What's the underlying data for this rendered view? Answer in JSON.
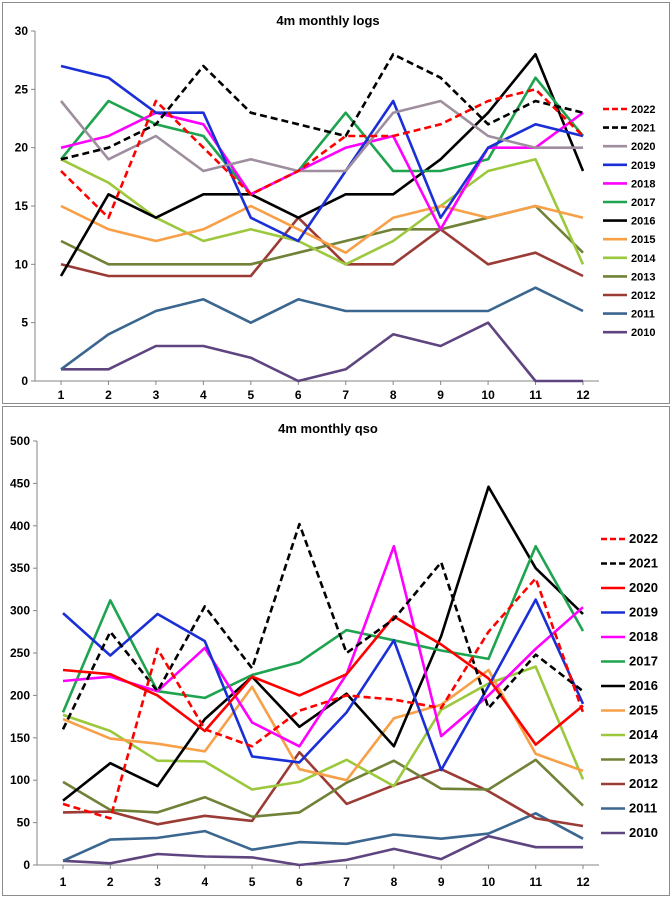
{
  "chart_data": [
    {
      "type": "line",
      "title": "4m monthly logs",
      "categories": [
        "1",
        "2",
        "3",
        "4",
        "5",
        "6",
        "7",
        "8",
        "9",
        "10",
        "11",
        "12"
      ],
      "ylim": [
        0,
        30
      ],
      "yticks": [
        "0",
        "5",
        "10",
        "15",
        "20",
        "25",
        "30"
      ],
      "grid": "none",
      "legend_position": "right",
      "series": [
        {
          "name": "2022",
          "color": "#ff0000",
          "dashed": true,
          "values": [
            18,
            14,
            24,
            20,
            16,
            18,
            21,
            21,
            22,
            24,
            25,
            21
          ]
        },
        {
          "name": "2021",
          "color": "#000000",
          "dashed": true,
          "values": [
            19,
            20,
            22,
            27,
            23,
            22,
            21,
            28,
            26,
            22,
            24,
            23
          ]
        },
        {
          "name": "2020",
          "color": "#9e8e9e",
          "dashed": false,
          "values": [
            24,
            19,
            21,
            18,
            19,
            18,
            18,
            23,
            24,
            21,
            20,
            20
          ]
        },
        {
          "name": "2019",
          "color": "#1a2fd6",
          "dashed": false,
          "values": [
            27,
            26,
            23,
            23,
            14,
            12,
            18,
            24,
            14,
            20,
            22,
            21
          ]
        },
        {
          "name": "2018",
          "color": "#ff00ff",
          "dashed": false,
          "values": [
            20,
            21,
            23,
            22,
            16,
            18,
            20,
            21,
            13,
            20,
            20,
            23
          ]
        },
        {
          "name": "2017",
          "color": "#1ea34f",
          "dashed": false,
          "values": [
            19,
            24,
            22,
            21,
            16,
            18,
            23,
            18,
            18,
            19,
            26,
            21
          ]
        },
        {
          "name": "2016",
          "color": "#000000",
          "dashed": false,
          "values": [
            9,
            16,
            14,
            16,
            16,
            14,
            16,
            16,
            19,
            23,
            28,
            18
          ]
        },
        {
          "name": "2015",
          "color": "#f7a048",
          "dashed": false,
          "values": [
            15,
            13,
            12,
            13,
            15,
            13,
            11,
            14,
            15,
            14,
            15,
            14
          ]
        },
        {
          "name": "2014",
          "color": "#9bc83c",
          "dashed": false,
          "values": [
            19,
            17,
            14,
            12,
            13,
            12,
            10,
            12,
            15,
            18,
            19,
            10
          ]
        },
        {
          "name": "2013",
          "color": "#708237",
          "dashed": false,
          "values": [
            12,
            10,
            10,
            10,
            10,
            11,
            12,
            13,
            13,
            14,
            15,
            11
          ]
        },
        {
          "name": "2012",
          "color": "#9b3b35",
          "dashed": false,
          "values": [
            10,
            9,
            9,
            9,
            9,
            14,
            10,
            10,
            13,
            10,
            11,
            9
          ]
        },
        {
          "name": "2011",
          "color": "#3b6690",
          "dashed": false,
          "values": [
            1,
            4,
            6,
            7,
            5,
            7,
            6,
            6,
            6,
            6,
            8,
            6
          ]
        },
        {
          "name": "2010",
          "color": "#5f4580",
          "dashed": false,
          "values": [
            1,
            1,
            3,
            3,
            2,
            0,
            1,
            4,
            3,
            5,
            0,
            0
          ]
        }
      ]
    },
    {
      "type": "line",
      "title": "4m monthly qso",
      "categories": [
        "1",
        "2",
        "3",
        "4",
        "5",
        "6",
        "7",
        "8",
        "9",
        "10",
        "11",
        "12"
      ],
      "ylim": [
        0,
        500
      ],
      "yticks": [
        "0",
        "50",
        "100",
        "150",
        "200",
        "250",
        "300",
        "350",
        "400",
        "450",
        "500"
      ],
      "grid": "none",
      "legend_position": "right",
      "series": [
        {
          "name": "2022",
          "color": "#ff0000",
          "dashed": true,
          "values": [
            72,
            55,
            255,
            160,
            140,
            182,
            200,
            195,
            185,
            275,
            338,
            180
          ]
        },
        {
          "name": "2021",
          "color": "#000000",
          "dashed": true,
          "values": [
            160,
            275,
            205,
            305,
            232,
            402,
            250,
            290,
            357,
            185,
            248,
            205
          ]
        },
        {
          "name": "2020",
          "color": "#ff0000",
          "dashed": false,
          "values": [
            230,
            225,
            200,
            158,
            222,
            200,
            225,
            293,
            260,
            220,
            142,
            188
          ]
        },
        {
          "name": "2019",
          "color": "#1a2fd6",
          "dashed": false,
          "values": [
            297,
            247,
            296,
            264,
            128,
            121,
            180,
            265,
            112,
            211,
            313,
            190
          ]
        },
        {
          "name": "2018",
          "color": "#ff00ff",
          "dashed": false,
          "values": [
            217,
            222,
            205,
            256,
            168,
            140,
            225,
            376,
            152,
            200,
            255,
            304
          ]
        },
        {
          "name": "2017",
          "color": "#1ea34f",
          "dashed": false,
          "values": [
            180,
            312,
            205,
            197,
            224,
            239,
            277,
            265,
            253,
            243,
            376,
            276
          ]
        },
        {
          "name": "2016",
          "color": "#000000",
          "dashed": false,
          "values": [
            76,
            120,
            93,
            172,
            222,
            163,
            202,
            140,
            270,
            446,
            350,
            296
          ]
        },
        {
          "name": "2015",
          "color": "#f7a048",
          "dashed": false,
          "values": [
            172,
            149,
            143,
            134,
            210,
            113,
            100,
            173,
            189,
            230,
            131,
            111
          ]
        },
        {
          "name": "2014",
          "color": "#9bc83c",
          "dashed": false,
          "values": [
            177,
            158,
            123,
            122,
            89,
            98,
            124,
            93,
            183,
            214,
            234,
            101
          ]
        },
        {
          "name": "2013",
          "color": "#708237",
          "dashed": false,
          "values": [
            98,
            65,
            62,
            80,
            57,
            62,
            97,
            123,
            90,
            89,
            124,
            70
          ]
        },
        {
          "name": "2012",
          "color": "#9b3b35",
          "dashed": false,
          "values": [
            62,
            63,
            48,
            58,
            52,
            133,
            72,
            94,
            113,
            87,
            55,
            46
          ]
        },
        {
          "name": "2011",
          "color": "#3b6690",
          "dashed": false,
          "values": [
            5,
            30,
            32,
            40,
            18,
            27,
            25,
            36,
            31,
            37,
            61,
            31
          ]
        },
        {
          "name": "2010",
          "color": "#5f4580",
          "dashed": false,
          "values": [
            5,
            2,
            13,
            10,
            9,
            0,
            6,
            19,
            7,
            34,
            21,
            21
          ]
        }
      ]
    }
  ]
}
